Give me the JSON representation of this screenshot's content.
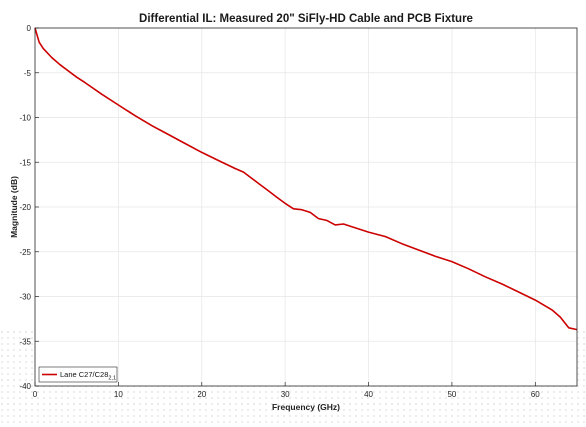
{
  "chart_data": {
    "type": "line",
    "title": "Differential IL: Measured 20\" SiFly-HD Cable and PCB Fixture",
    "xlabel": "Frequency (GHz)",
    "ylabel": "Magnitude (dB)",
    "xlim": [
      0,
      65
    ],
    "ylim": [
      -40,
      0
    ],
    "x_ticks": [
      "0",
      "10",
      "20",
      "30",
      "40",
      "50",
      "60"
    ],
    "y_ticks": [
      "0",
      "-5",
      "-10",
      "-15",
      "-20",
      "-25",
      "-30",
      "-35",
      "-40"
    ],
    "grid": true,
    "legend_position": "bottom-left",
    "series": [
      {
        "name": "Lane C27/C28",
        "name_subscript": "2,1",
        "color": "#cc0000",
        "x": [
          0,
          0.5,
          1,
          2,
          3,
          4,
          5,
          6,
          8,
          10,
          12,
          14,
          16,
          18,
          20,
          22,
          24,
          25,
          26,
          27,
          28,
          29,
          30,
          31,
          32,
          33,
          34,
          35,
          36,
          37,
          38,
          40,
          42,
          44,
          46,
          48,
          50,
          52,
          54,
          56,
          58,
          60,
          62,
          63,
          64,
          65
        ],
        "y": [
          0,
          -1.6,
          -2.3,
          -3.3,
          -4.1,
          -4.8,
          -5.5,
          -6.1,
          -7.4,
          -8.6,
          -9.8,
          -10.9,
          -11.9,
          -12.9,
          -13.9,
          -14.8,
          -15.7,
          -16.1,
          -16.8,
          -17.5,
          -18.2,
          -18.9,
          -19.6,
          -20.2,
          -20.3,
          -20.6,
          -21.3,
          -21.5,
          -22.0,
          -21.9,
          -22.2,
          -22.8,
          -23.3,
          -24.1,
          -24.8,
          -25.5,
          -26.1,
          -26.9,
          -27.8,
          -28.6,
          -29.5,
          -30.4,
          -31.5,
          -32.3,
          -33.5,
          -33.7
        ]
      }
    ]
  }
}
